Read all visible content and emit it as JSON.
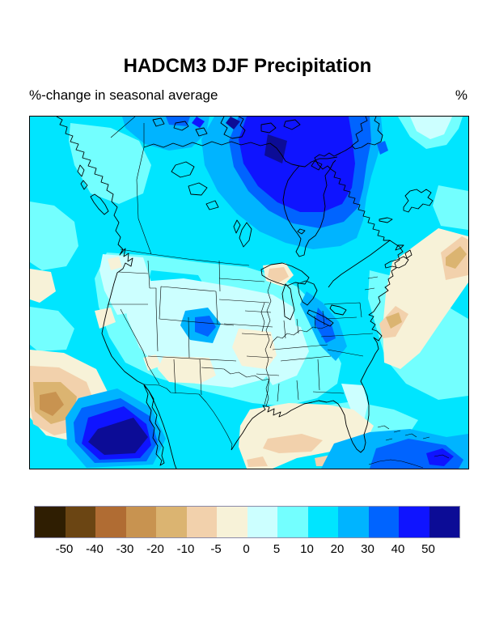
{
  "page": {
    "title": "HADCM3 DJF Precipitation",
    "subtitle_left": "%-change in seasonal average",
    "unit_label": "%"
  },
  "chart_data": {
    "type": "heatmap",
    "variant": "filled-contour-map",
    "title": "HADCM3 DJF Precipitation",
    "subtitle": "%-change in seasonal average",
    "units": "%",
    "region_shown": "North America",
    "legend_position": "bottom",
    "levels": [
      -50,
      -40,
      -30,
      -20,
      -10,
      -5,
      0,
      5,
      10,
      20,
      30,
      40,
      50
    ],
    "colorbar_labels": [
      "-50",
      "-40",
      "-30",
      "-20",
      "-10",
      "-5",
      "0",
      "5",
      "10",
      "20",
      "30",
      "40",
      "50"
    ],
    "palette": [
      "#2f1e02",
      "#6b4513",
      "#b06c33",
      "#c89350",
      "#dbb471",
      "#f2d1ac",
      "#f7f2d8",
      "#ccffff",
      "#73ffff",
      "#00e5ff",
      "#00b4ff",
      "#0064ff",
      "#0f14ff",
      "#0c0c96"
    ],
    "palette_band_meaning": [
      "< -50",
      "-50 to -40",
      "-40 to -30",
      "-30 to -20",
      "-20 to -10",
      "-10 to -5",
      "-5 to 0",
      "0 to 5",
      "5 to 10",
      "10 to 20",
      "20 to 30",
      "30 to 40",
      "40 to 50",
      "> 50"
    ],
    "notable_maxima": [
      {
        "location": "north of Hudson Bay / Baffin region",
        "value_band": "> 50"
      },
      {
        "location": "Pacific off Baja California",
        "value_band": "> 50"
      },
      {
        "location": "Caribbean south of Florida",
        "value_band": "40 to 50"
      },
      {
        "location": "Colorado / central plains spot",
        "value_band": "30 to 40"
      }
    ],
    "notable_minima": [
      {
        "location": "eastern Pacific at left edge",
        "value_band": "-30 to -20"
      },
      {
        "location": "Gulf of Mexico coast",
        "value_band": "-10 to -5"
      },
      {
        "location": "western Atlantic off Carolinas",
        "value_band": "-20 to -10"
      },
      {
        "location": "Lake Superior / Upper Michigan spot",
        "value_band": "-10 to -5"
      }
    ]
  }
}
